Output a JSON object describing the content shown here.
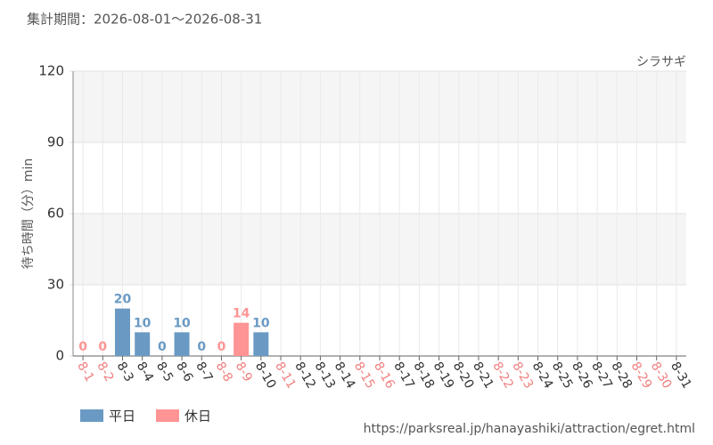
{
  "header": "集計期間：2026-08-01〜2026-08-31",
  "chart_data": {
    "type": "bar",
    "title": "シラサギ",
    "y_label": "待ち時間（分）min",
    "categories": [
      "8-1",
      "8-2",
      "8-3",
      "8-4",
      "8-5",
      "8-6",
      "8-7",
      "8-8",
      "8-9",
      "8-10",
      "8-11",
      "8-12",
      "8-13",
      "8-14",
      "8-15",
      "8-16",
      "8-17",
      "8-18",
      "8-19",
      "8-20",
      "8-21",
      "8-22",
      "8-23",
      "8-24",
      "8-25",
      "8-26",
      "8-27",
      "8-28",
      "8-29",
      "8-30",
      "8-31"
    ],
    "category_colors": [
      "#f08080",
      "#f08080",
      "#333",
      "#333",
      "#333",
      "#333",
      "#333",
      "#f08080",
      "#f08080",
      "#333",
      "#f08080",
      "#333",
      "#333",
      "#333",
      "#f08080",
      "#f08080",
      "#333",
      "#333",
      "#333",
      "#333",
      "#333",
      "#f08080",
      "#f08080",
      "#333",
      "#333",
      "#333",
      "#333",
      "#333",
      "#f08080",
      "#f08080",
      "#333"
    ],
    "series": [
      {
        "name": "平日",
        "color": "#6a9ac4",
        "values": [
          null,
          null,
          20,
          10,
          0,
          10,
          0,
          null,
          null,
          10,
          null,
          null,
          null,
          null,
          null,
          null,
          null,
          null,
          null,
          null,
          null,
          null,
          null,
          null,
          null,
          null,
          null,
          null,
          null,
          null,
          null
        ]
      },
      {
        "name": "休日",
        "color": "#ff9494",
        "values": [
          0,
          0,
          null,
          null,
          null,
          null,
          null,
          0,
          14,
          null,
          null,
          null,
          null,
          null,
          null,
          null,
          null,
          null,
          null,
          null,
          null,
          null,
          null,
          null,
          null,
          null,
          null,
          null,
          null,
          null,
          null
        ]
      }
    ],
    "ylim": [
      0,
      120
    ],
    "yticks": [
      0,
      30,
      60,
      90,
      120
    ],
    "grid": true
  },
  "footer": "https://parksreal.jp/hanayashiki/attraction/egret.html"
}
